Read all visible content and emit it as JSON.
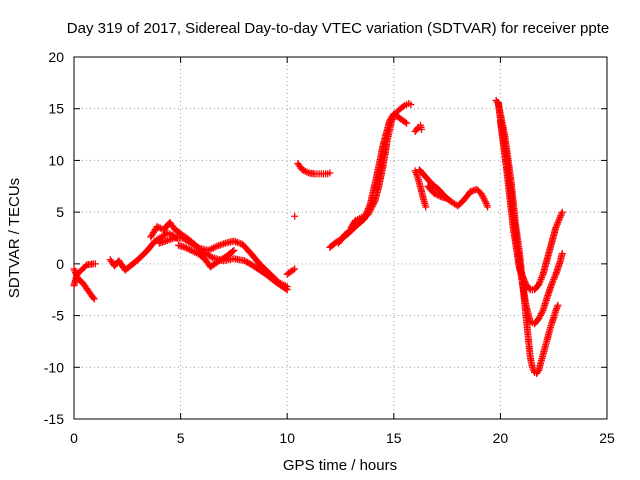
{
  "chart_data": {
    "type": "scatter",
    "title": "Day 319 of 2017, Sidereal Day-to-day VTEC variation (SDTVAR) for receiver ppte",
    "xlabel": "GPS time / hours",
    "ylabel": "SDTVAR / TECUs",
    "xlim": [
      0,
      25
    ],
    "ylim": [
      -15,
      20
    ],
    "xticks": [
      "0",
      "5",
      "10",
      "15",
      "20",
      "25"
    ],
    "yticks": [
      "-15",
      "-10",
      "-5",
      "0",
      "5",
      "10",
      "15",
      "20"
    ],
    "grid": true,
    "marker": "plus",
    "color": "#ff0000",
    "series": [
      {
        "points": [
          [
            0,
            -0.5
          ],
          [
            0.2,
            -1.5
          ],
          [
            0.4,
            -1.8
          ],
          [
            0.6,
            -2.4
          ],
          [
            0.8,
            -3.0
          ],
          [
            0.95,
            -3.4
          ]
        ]
      },
      {
        "points": [
          [
            0,
            -2.1
          ],
          [
            0.15,
            -1.0
          ],
          [
            0.35,
            -0.6
          ],
          [
            0.6,
            -0.1
          ],
          [
            0.9,
            0.0
          ],
          [
            1.0,
            0.0
          ]
        ]
      },
      {
        "points": [
          [
            1.7,
            0.4
          ],
          [
            1.9,
            -0.2
          ],
          [
            2.1,
            0.3
          ],
          [
            2.4,
            -0.6
          ],
          [
            2.7,
            -0.1
          ],
          [
            3.0,
            0.4
          ],
          [
            3.4,
            1.2
          ],
          [
            3.8,
            2.2
          ],
          [
            4.1,
            2.6
          ],
          [
            4.4,
            3.0
          ],
          [
            4.6,
            2.8
          ],
          [
            4.8,
            2.5
          ]
        ]
      },
      {
        "points": [
          [
            3.6,
            2.6
          ],
          [
            3.9,
            3.6
          ],
          [
            4.2,
            3.3
          ],
          [
            4.5,
            4.0
          ],
          [
            4.7,
            3.4
          ],
          [
            5.0,
            2.9
          ],
          [
            5.3,
            2.5
          ],
          [
            5.7,
            1.8
          ],
          [
            6.0,
            1.2
          ],
          [
            6.5,
            0.6
          ],
          [
            7.0,
            0.3
          ],
          [
            7.5,
            0.5
          ],
          [
            8.0,
            0.3
          ],
          [
            8.5,
            -0.3
          ],
          [
            9.0,
            -1.0
          ],
          [
            9.5,
            -1.8
          ],
          [
            10.0,
            -2.5
          ]
        ]
      },
      {
        "points": [
          [
            4.0,
            2.0
          ],
          [
            4.3,
            2.2
          ],
          [
            4.7,
            2.5
          ],
          [
            5.1,
            2.5
          ],
          [
            5.5,
            2.0
          ],
          [
            5.9,
            1.5
          ],
          [
            6.3,
            1.3
          ],
          [
            6.7,
            1.7
          ],
          [
            7.1,
            2.0
          ],
          [
            7.5,
            2.2
          ],
          [
            7.9,
            1.9
          ],
          [
            8.3,
            1.0
          ],
          [
            8.7,
            0.0
          ],
          [
            9.2,
            -1.0
          ],
          [
            9.6,
            -1.8
          ],
          [
            10.0,
            -2.2
          ]
        ]
      },
      {
        "points": [
          [
            4.9,
            1.8
          ],
          [
            5.2,
            1.6
          ],
          [
            5.5,
            1.3
          ],
          [
            5.9,
            0.9
          ],
          [
            6.2,
            0.3
          ],
          [
            6.4,
            -0.3
          ],
          [
            6.6,
            0.0
          ],
          [
            6.9,
            0.4
          ],
          [
            7.2,
            0.8
          ],
          [
            7.5,
            1.3
          ]
        ]
      },
      {
        "points": [
          [
            10.0,
            -1.0
          ],
          [
            10.2,
            -0.7
          ],
          [
            10.35,
            -0.5
          ]
        ]
      },
      {
        "points": [
          [
            10.35,
            4.6
          ]
        ]
      },
      {
        "points": [
          [
            10.5,
            9.7
          ],
          [
            10.7,
            9.1
          ],
          [
            11.0,
            8.8
          ],
          [
            11.3,
            8.7
          ],
          [
            11.6,
            8.7
          ],
          [
            11.9,
            8.7
          ],
          [
            12.0,
            8.8
          ]
        ]
      },
      {
        "points": [
          [
            12.0,
            1.6
          ],
          [
            12.3,
            2.1
          ],
          [
            12.6,
            2.5
          ],
          [
            12.9,
            3.0
          ],
          [
            13.2,
            3.6
          ],
          [
            13.5,
            4.2
          ],
          [
            13.8,
            4.8
          ],
          [
            14.1,
            6.0
          ],
          [
            14.3,
            7.5
          ],
          [
            14.5,
            9.5
          ],
          [
            14.7,
            12.0
          ],
          [
            14.9,
            13.8
          ],
          [
            15.1,
            14.6
          ],
          [
            15.3,
            15.0
          ],
          [
            15.5,
            15.3
          ],
          [
            15.7,
            15.5
          ],
          [
            15.8,
            15.4
          ]
        ]
      },
      {
        "points": [
          [
            12.4,
            2.0
          ],
          [
            12.7,
            2.8
          ],
          [
            13.0,
            3.3
          ],
          [
            13.3,
            3.8
          ],
          [
            13.6,
            4.3
          ],
          [
            13.9,
            5.8
          ],
          [
            14.2,
            8.5
          ],
          [
            14.5,
            11.5
          ],
          [
            14.8,
            13.8
          ],
          [
            15.0,
            14.5
          ],
          [
            15.2,
            14.2
          ],
          [
            15.4,
            13.9
          ],
          [
            15.6,
            13.6
          ]
        ]
      },
      {
        "points": [
          [
            13.0,
            3.5
          ],
          [
            13.2,
            4.2
          ],
          [
            13.4,
            4.4
          ],
          [
            13.6,
            4.6
          ]
        ]
      },
      {
        "points": [
          [
            16.0,
            12.8
          ],
          [
            16.15,
            13.2
          ],
          [
            16.25,
            13.4
          ],
          [
            16.3,
            13.0
          ]
        ]
      },
      {
        "points": [
          [
            16.0,
            9.0
          ],
          [
            16.1,
            8.5
          ],
          [
            16.2,
            7.8
          ],
          [
            16.3,
            7.0
          ],
          [
            16.4,
            6.2
          ],
          [
            16.5,
            5.5
          ]
        ]
      },
      {
        "points": [
          [
            16.2,
            9.1
          ],
          [
            16.5,
            8.4
          ],
          [
            16.8,
            7.7
          ],
          [
            17.1,
            7.2
          ],
          [
            17.4,
            6.5
          ],
          [
            17.7,
            6.0
          ],
          [
            18.0,
            5.6
          ],
          [
            18.3,
            6.2
          ],
          [
            18.6,
            7.0
          ],
          [
            18.9,
            7.2
          ],
          [
            19.1,
            6.8
          ],
          [
            19.3,
            6.0
          ],
          [
            19.4,
            5.5
          ]
        ]
      },
      {
        "points": [
          [
            16.6,
            7.5
          ],
          [
            16.9,
            6.8
          ],
          [
            17.2,
            6.5
          ],
          [
            17.5,
            6.3
          ]
        ]
      },
      {
        "points": [
          [
            19.8,
            15.8
          ],
          [
            19.9,
            15.5
          ],
          [
            20.0,
            14.5
          ],
          [
            20.1,
            13.5
          ],
          [
            20.2,
            12.5
          ],
          [
            20.3,
            11.0
          ],
          [
            20.4,
            9.5
          ],
          [
            20.5,
            8.0
          ],
          [
            20.6,
            6.0
          ],
          [
            20.7,
            4.0
          ],
          [
            20.8,
            2.5
          ],
          [
            20.9,
            1.0
          ],
          [
            21.0,
            -1.0
          ],
          [
            21.1,
            -3.0
          ],
          [
            21.2,
            -5.0
          ],
          [
            21.3,
            -7.0
          ],
          [
            21.4,
            -9.0
          ],
          [
            21.5,
            -10.0
          ],
          [
            21.6,
            -10.5
          ],
          [
            21.7,
            -10.6
          ],
          [
            21.8,
            -10.3
          ],
          [
            21.9,
            -9.5
          ],
          [
            22.0,
            -8.8
          ],
          [
            22.1,
            -8.0
          ],
          [
            22.2,
            -7.3
          ],
          [
            22.3,
            -6.5
          ],
          [
            22.4,
            -5.8
          ],
          [
            22.5,
            -5.2
          ],
          [
            22.6,
            -4.5
          ],
          [
            22.7,
            -4.0
          ]
        ]
      },
      {
        "points": [
          [
            19.9,
            15.6
          ],
          [
            20.0,
            14.0
          ],
          [
            20.2,
            11.5
          ],
          [
            20.4,
            8.5
          ],
          [
            20.6,
            5.0
          ],
          [
            20.8,
            1.5
          ],
          [
            21.0,
            -1.5
          ],
          [
            21.2,
            -4.0
          ],
          [
            21.4,
            -5.6
          ],
          [
            21.6,
            -5.8
          ],
          [
            21.8,
            -5.3
          ],
          [
            22.0,
            -4.5
          ],
          [
            22.2,
            -3.2
          ],
          [
            22.4,
            -2.0
          ],
          [
            22.6,
            -1.0
          ],
          [
            22.8,
            0.2
          ],
          [
            22.9,
            1.0
          ]
        ]
      },
      {
        "points": [
          [
            20.0,
            13.8
          ],
          [
            20.3,
            9.0
          ],
          [
            20.6,
            3.5
          ],
          [
            20.9,
            -0.5
          ],
          [
            21.2,
            -2.0
          ],
          [
            21.4,
            -2.5
          ],
          [
            21.6,
            -2.5
          ],
          [
            21.8,
            -2.0
          ],
          [
            22.0,
            -1.0
          ],
          [
            22.2,
            0.5
          ],
          [
            22.4,
            2.0
          ],
          [
            22.6,
            3.5
          ],
          [
            22.8,
            4.5
          ],
          [
            22.9,
            5.0
          ]
        ]
      }
    ]
  }
}
